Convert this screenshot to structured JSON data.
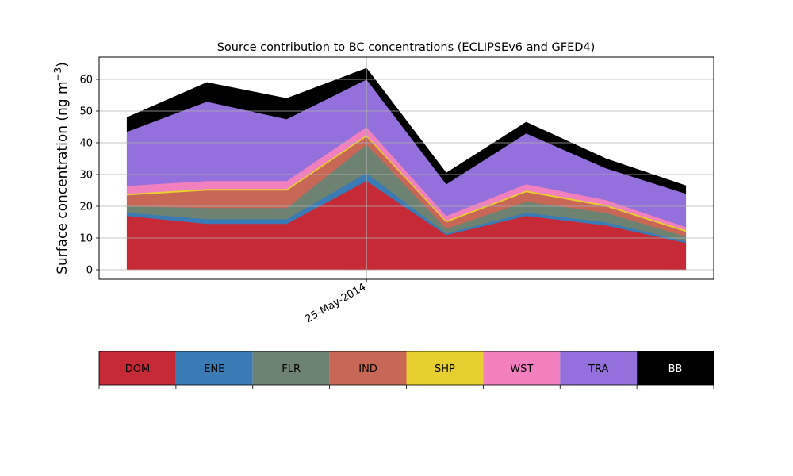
{
  "chart_data": {
    "type": "area",
    "stacked": true,
    "title": "Source contribution to BC concentrations (ECLIPSEv6 and GFED4)",
    "ylabel": "Surface concentration (ng m",
    "ylabel_sup": "−3",
    "ylabel_close": ")",
    "xlabel": "",
    "ylim": [
      -3,
      67
    ],
    "yticks": [
      0,
      10,
      20,
      30,
      40,
      50,
      60
    ],
    "xticks": [
      {
        "x": 3,
        "label": "25-May-2014"
      }
    ],
    "xlim": [
      -0.35,
      7.35
    ],
    "grid": true,
    "x": [
      0,
      1,
      2,
      3,
      4,
      5,
      6,
      7
    ],
    "series": [
      {
        "name": "DOM",
        "color": "#c62a36",
        "values": [
          17.0,
          14.5,
          14.5,
          28.0,
          11.0,
          17.0,
          14.0,
          8.5
        ]
      },
      {
        "name": "ENE",
        "color": "#3a7bb5",
        "values": [
          1.0,
          1.5,
          1.5,
          2.5,
          0.5,
          1.0,
          1.0,
          0.5
        ]
      },
      {
        "name": "FLR",
        "color": "#6e8272",
        "values": [
          2.0,
          3.5,
          3.5,
          9.0,
          1.5,
          3.5,
          3.0,
          1.5
        ]
      },
      {
        "name": "IND",
        "color": "#c96756",
        "values": [
          3.5,
          5.5,
          5.5,
          2.5,
          2.0,
          3.0,
          2.0,
          1.5
        ]
      },
      {
        "name": "SHP",
        "color": "#e7cf30",
        "values": [
          0.5,
          0.5,
          0.5,
          0.5,
          0.5,
          0.5,
          0.5,
          0.5
        ]
      },
      {
        "name": "WST",
        "color": "#f27fbe",
        "values": [
          2.5,
          2.5,
          2.5,
          2.5,
          1.5,
          2.0,
          1.5,
          1.0
        ]
      },
      {
        "name": "TRA",
        "color": "#9370db",
        "values": [
          17.0,
          25.0,
          19.5,
          15.0,
          10.0,
          16.0,
          10.0,
          10.5
        ]
      },
      {
        "name": "BB",
        "color": "#000000",
        "values": [
          4.5,
          6.0,
          6.5,
          3.5,
          3.5,
          3.5,
          3.0,
          2.5
        ]
      }
    ],
    "legend": {
      "placement": "bottom",
      "items": [
        {
          "name": "DOM",
          "color": "#c62a36",
          "text_color": "#000000"
        },
        {
          "name": "ENE",
          "color": "#3a7bb5",
          "text_color": "#000000"
        },
        {
          "name": "FLR",
          "color": "#6e8272",
          "text_color": "#000000"
        },
        {
          "name": "IND",
          "color": "#c96756",
          "text_color": "#000000"
        },
        {
          "name": "SHP",
          "color": "#e7cf30",
          "text_color": "#000000"
        },
        {
          "name": "WST",
          "color": "#f27fbe",
          "text_color": "#000000"
        },
        {
          "name": "TRA",
          "color": "#9370db",
          "text_color": "#000000"
        },
        {
          "name": "BB",
          "color": "#000000",
          "text_color": "#ffffff"
        }
      ]
    }
  }
}
